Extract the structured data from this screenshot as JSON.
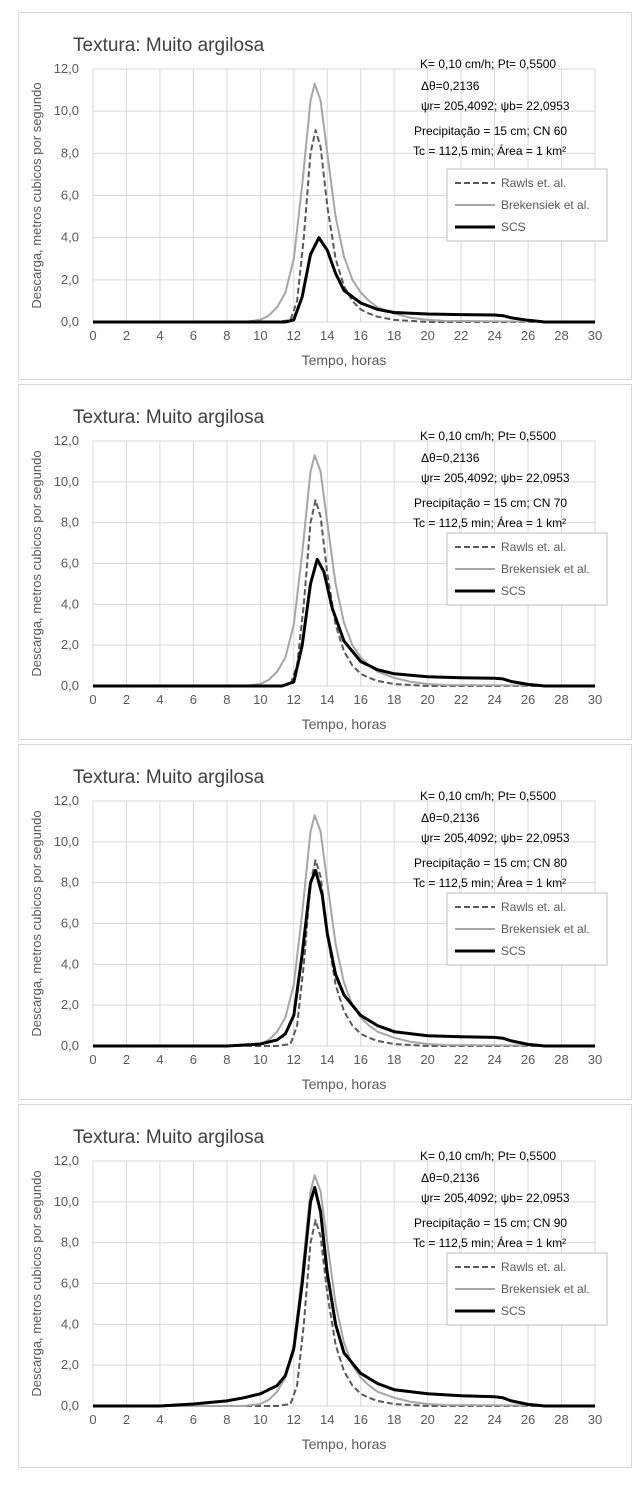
{
  "colors": {
    "rawls": "#595959",
    "brakensiek": "#a6a6a6",
    "scs": "#000000",
    "grid": "#d9d9d9",
    "text": "#595959"
  },
  "charts": [
    {
      "title": "Textura: Muito argilosa",
      "params": [
        "K= 0,10 cm/h; Pt= 0,5500",
        "Δθ=0,2136",
        "ψr= 205,4092;  ψb= 22,0953",
        "Precipitação = 15 cm; CN 60",
        "Tc = 112,5 min; Área = 1 km²"
      ],
      "legend": [
        "Rawls et. al.",
        "Brekensiek et al.",
        "SCS"
      ],
      "xlabel": "Tempo, horas",
      "ylabel": "Descarga, metros cubicos por segundo"
    },
    {
      "title": "Textura: Muito argilosa",
      "params": [
        "K= 0,10 cm/h; Pt= 0,5500",
        "Δθ=0,2136",
        "ψr= 205,4092;  ψb= 22,0953",
        "Precipitação = 15 cm; CN 70",
        "Tc = 112,5 min; Área = 1 km²"
      ],
      "legend": [
        "Rawls et. al.",
        "Brekensiek et al.",
        "SCS"
      ],
      "xlabel": "Tempo, horas",
      "ylabel": "Descarga, metros cubicos por segundo"
    },
    {
      "title": "Textura: Muito argilosa",
      "params": [
        "K= 0,10 cm/h; Pt= 0,5500",
        "Δθ=0,2136",
        "ψr= 205,4092;  ψb= 22,0953",
        "Precipitação = 15 cm; CN 80",
        "Tc = 112,5 min; Área = 1 km²"
      ],
      "legend": [
        "Rawls et. al.",
        "Brekensiek et al.",
        "SCS"
      ],
      "xlabel": "Tempo, horas",
      "ylabel": "Descarga, metros cubicos por segundo"
    },
    {
      "title": "Textura: Muito argilosa",
      "params": [
        "K= 0,10 cm/h; Pt= 0,5500",
        "Δθ=0,2136",
        "ψr= 205,4092;  ψb= 22,0953",
        "Precipitação = 15 cm; CN 90",
        "Tc = 112,5 min; Área = 1 km²"
      ],
      "legend": [
        "Rawls et. al.",
        "Brekensiek et al.",
        "SCS"
      ],
      "xlabel": "Tempo, horas",
      "ylabel": "Descarga, metros cubicos por segundo"
    }
  ],
  "chart_data": [
    {
      "type": "line",
      "title": "Textura: Muito argilosa",
      "xlabel": "Tempo, horas",
      "ylabel": "Descarga, metros cubicos por segundo",
      "xlim": [
        0,
        30
      ],
      "ylim": [
        0,
        12
      ],
      "x_ticks": [
        "0",
        "2",
        "4",
        "6",
        "8",
        "10",
        "12",
        "14",
        "16",
        "18",
        "20",
        "22",
        "24",
        "26",
        "28",
        "30"
      ],
      "y_ticks": [
        "0,0",
        "2,0",
        "4,0",
        "6,0",
        "8,0",
        "10,0",
        "12,0"
      ],
      "grid": true,
      "legend_position": "right",
      "series": [
        {
          "name": "Rawls et. al.",
          "style": "dashed",
          "x": [
            0,
            11,
            11.8,
            12.2,
            12.6,
            13,
            13.3,
            13.6,
            14,
            14.5,
            15,
            15.5,
            16,
            16.5,
            17,
            18,
            19,
            20,
            30
          ],
          "y": [
            0,
            0,
            0.1,
            1,
            4,
            8,
            9.1,
            8.3,
            5.5,
            3,
            1.7,
            1,
            0.6,
            0.4,
            0.25,
            0.1,
            0.05,
            0,
            0
          ]
        },
        {
          "name": "Brekensiek et al.",
          "style": "solid",
          "x": [
            0,
            9,
            10,
            10.5,
            11,
            11.5,
            12,
            12.5,
            13,
            13.25,
            13.6,
            14,
            14.5,
            15,
            15.5,
            16,
            16.5,
            17,
            18,
            19,
            20,
            21,
            30
          ],
          "y": [
            0,
            0,
            0.1,
            0.3,
            0.7,
            1.4,
            3,
            6.5,
            10.5,
            11.3,
            10.5,
            8,
            5,
            3.1,
            2,
            1.4,
            1,
            0.7,
            0.4,
            0.2,
            0.1,
            0.05,
            0
          ]
        },
        {
          "name": "SCS",
          "style": "solid",
          "x": [
            0,
            11.5,
            12,
            12.5,
            13,
            13.5,
            14,
            14.5,
            15,
            16,
            17,
            18,
            20,
            22,
            24,
            24.5,
            25,
            26,
            27,
            30
          ],
          "y": [
            0,
            0,
            0.1,
            1.2,
            3.2,
            4,
            3.4,
            2.3,
            1.5,
            0.9,
            0.6,
            0.45,
            0.38,
            0.35,
            0.33,
            0.3,
            0.2,
            0.08,
            0,
            0
          ]
        }
      ]
    },
    {
      "type": "line",
      "title": "Textura: Muito argilosa",
      "xlabel": "Tempo, horas",
      "ylabel": "Descarga, metros cubicos por segundo",
      "xlim": [
        0,
        30
      ],
      "ylim": [
        0,
        12
      ],
      "x_ticks": [
        "0",
        "2",
        "4",
        "6",
        "8",
        "10",
        "12",
        "14",
        "16",
        "18",
        "20",
        "22",
        "24",
        "26",
        "28",
        "30"
      ],
      "y_ticks": [
        "0,0",
        "2,0",
        "4,0",
        "6,0",
        "8,0",
        "10,0",
        "12,0"
      ],
      "grid": true,
      "legend_position": "right",
      "series": [
        {
          "name": "Rawls et. al.",
          "style": "dashed",
          "x": [
            0,
            11,
            11.8,
            12.2,
            12.6,
            13,
            13.3,
            13.6,
            14,
            14.5,
            15,
            15.5,
            16,
            16.5,
            17,
            18,
            19,
            20,
            30
          ],
          "y": [
            0,
            0,
            0.1,
            1,
            4,
            8,
            9.1,
            8.3,
            5.5,
            3,
            1.7,
            1,
            0.6,
            0.4,
            0.25,
            0.1,
            0.05,
            0,
            0
          ]
        },
        {
          "name": "Brekensiek et al.",
          "style": "solid",
          "x": [
            0,
            9,
            10,
            10.5,
            11,
            11.5,
            12,
            12.5,
            13,
            13.25,
            13.6,
            14,
            14.5,
            15,
            15.5,
            16,
            16.5,
            17,
            18,
            19,
            20,
            21,
            30
          ],
          "y": [
            0,
            0,
            0.1,
            0.3,
            0.7,
            1.4,
            3,
            6.5,
            10.5,
            11.3,
            10.5,
            8,
            5,
            3.1,
            2,
            1.4,
            1,
            0.7,
            0.4,
            0.2,
            0.1,
            0.05,
            0
          ]
        },
        {
          "name": "SCS",
          "style": "solid",
          "x": [
            0,
            11.3,
            12,
            12.5,
            13,
            13.4,
            13.8,
            14.3,
            15,
            16,
            17,
            18,
            20,
            22,
            24,
            24.5,
            25,
            26,
            27,
            30
          ],
          "y": [
            0,
            0,
            0.2,
            2,
            5,
            6.2,
            5.6,
            3.8,
            2.2,
            1.2,
            0.8,
            0.6,
            0.45,
            0.4,
            0.38,
            0.35,
            0.22,
            0.08,
            0,
            0
          ]
        }
      ]
    },
    {
      "type": "line",
      "title": "Textura: Muito argilosa",
      "xlabel": "Tempo, horas",
      "ylabel": "Descarga, metros cubicos por segundo",
      "xlim": [
        0,
        30
      ],
      "ylim": [
        0,
        12
      ],
      "x_ticks": [
        "0",
        "2",
        "4",
        "6",
        "8",
        "10",
        "12",
        "14",
        "16",
        "18",
        "20",
        "22",
        "24",
        "26",
        "28",
        "30"
      ],
      "y_ticks": [
        "0,0",
        "2,0",
        "4,0",
        "6,0",
        "8,0",
        "10,0",
        "12,0"
      ],
      "grid": true,
      "legend_position": "right",
      "series": [
        {
          "name": "Rawls et. al.",
          "style": "dashed",
          "x": [
            0,
            11,
            11.8,
            12.2,
            12.6,
            13,
            13.3,
            13.6,
            14,
            14.5,
            15,
            15.5,
            16,
            16.5,
            17,
            18,
            19,
            20,
            30
          ],
          "y": [
            0,
            0,
            0.1,
            1,
            4,
            8,
            9.1,
            8.3,
            5.5,
            3,
            1.7,
            1,
            0.6,
            0.4,
            0.25,
            0.1,
            0.05,
            0,
            0
          ]
        },
        {
          "name": "Brekensiek et al.",
          "style": "solid",
          "x": [
            0,
            9,
            10,
            10.5,
            11,
            11.5,
            12,
            12.5,
            13,
            13.25,
            13.6,
            14,
            14.5,
            15,
            15.5,
            16,
            16.5,
            17,
            18,
            19,
            20,
            21,
            30
          ],
          "y": [
            0,
            0,
            0.1,
            0.3,
            0.7,
            1.4,
            3,
            6.5,
            10.5,
            11.3,
            10.5,
            8,
            5,
            3.1,
            2,
            1.4,
            1,
            0.7,
            0.4,
            0.2,
            0.1,
            0.05,
            0
          ]
        },
        {
          "name": "SCS",
          "style": "solid",
          "x": [
            0,
            8,
            10,
            11,
            11.5,
            12,
            12.5,
            13,
            13.3,
            13.7,
            14,
            14.5,
            15,
            16,
            17,
            18,
            20,
            22,
            24,
            24.5,
            25,
            26,
            27,
            30
          ],
          "y": [
            0,
            0,
            0.1,
            0.3,
            0.6,
            1.5,
            4.5,
            8,
            8.6,
            7.4,
            5.5,
            3.5,
            2.5,
            1.5,
            1,
            0.7,
            0.5,
            0.45,
            0.42,
            0.38,
            0.25,
            0.08,
            0,
            0
          ]
        }
      ]
    },
    {
      "type": "line",
      "title": "Textura: Muito argilosa",
      "xlabel": "Tempo, horas",
      "ylabel": "Descarga, metros cubicos por segundo",
      "xlim": [
        0,
        30
      ],
      "ylim": [
        0,
        12
      ],
      "x_ticks": [
        "0",
        "2",
        "4",
        "6",
        "8",
        "10",
        "12",
        "14",
        "16",
        "18",
        "20",
        "22",
        "24",
        "26",
        "28",
        "30"
      ],
      "y_ticks": [
        "0,0",
        "2,0",
        "4,0",
        "6,0",
        "8,0",
        "10,0",
        "12,0"
      ],
      "grid": true,
      "legend_position": "right",
      "series": [
        {
          "name": "Rawls et. al.",
          "style": "dashed",
          "x": [
            0,
            11,
            11.8,
            12.2,
            12.6,
            13,
            13.3,
            13.6,
            14,
            14.5,
            15,
            15.5,
            16,
            16.5,
            17,
            18,
            19,
            20,
            30
          ],
          "y": [
            0,
            0,
            0.1,
            1,
            4,
            8,
            9.1,
            8.3,
            5.5,
            3,
            1.7,
            1,
            0.6,
            0.4,
            0.25,
            0.1,
            0.05,
            0,
            0
          ]
        },
        {
          "name": "Brekensiek et al.",
          "style": "solid",
          "x": [
            0,
            9,
            10,
            10.5,
            11,
            11.5,
            12,
            12.5,
            13,
            13.25,
            13.6,
            14,
            14.5,
            15,
            15.5,
            16,
            16.5,
            17,
            18,
            19,
            20,
            21,
            30
          ],
          "y": [
            0,
            0,
            0.1,
            0.3,
            0.7,
            1.4,
            3,
            6.5,
            10.5,
            11.3,
            10.5,
            8,
            5,
            3.1,
            2,
            1.4,
            1,
            0.7,
            0.4,
            0.2,
            0.1,
            0.05,
            0
          ]
        },
        {
          "name": "SCS",
          "style": "solid",
          "x": [
            0,
            4,
            6,
            8,
            9,
            10,
            10.5,
            11,
            11.5,
            12,
            12.5,
            13,
            13.25,
            13.6,
            14,
            14.5,
            15,
            16,
            17,
            18,
            20,
            22,
            24,
            24.5,
            25,
            26,
            27,
            30
          ],
          "y": [
            0,
            0,
            0.1,
            0.25,
            0.4,
            0.6,
            0.8,
            1,
            1.5,
            2.8,
            6,
            10,
            10.7,
            9.5,
            6.5,
            4,
            2.6,
            1.6,
            1.1,
            0.8,
            0.6,
            0.5,
            0.45,
            0.4,
            0.25,
            0.08,
            0,
            0
          ]
        }
      ]
    }
  ]
}
